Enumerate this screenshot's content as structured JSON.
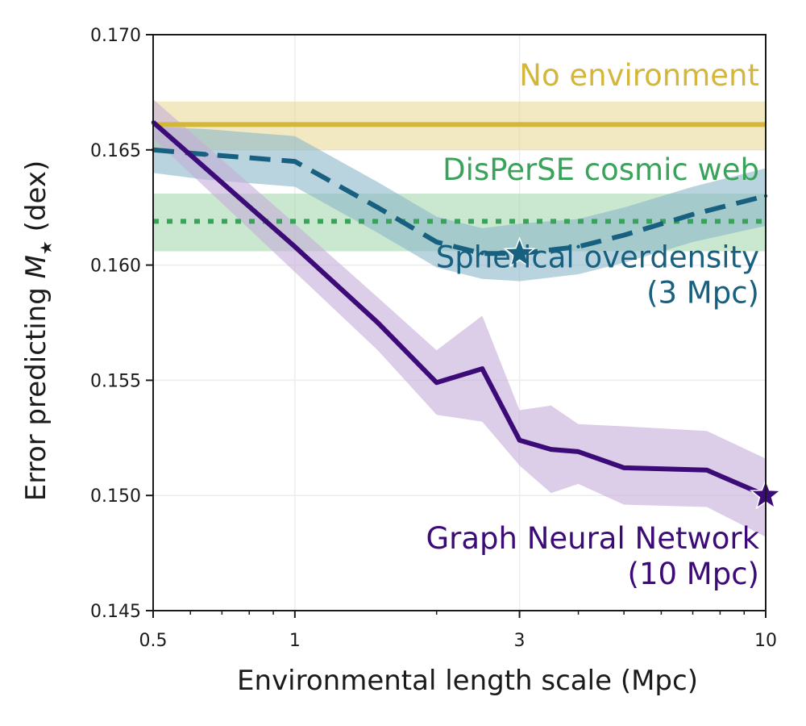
{
  "chart_data": {
    "type": "line",
    "xscale": "log",
    "xlim": [
      0.5,
      10
    ],
    "ylim": [
      0.145,
      0.17
    ],
    "grid": true,
    "xlabel": "Environmental length scale (Mpc)",
    "ylabel_prefix": "Error predicting ",
    "ylabel_var": "M",
    "ylabel_sub": "★",
    "ylabel_suffix": " (dex)",
    "xticks": [
      {
        "value": 0.5,
        "label": "0.5"
      },
      {
        "value": 1,
        "label": "1"
      },
      {
        "value": 3,
        "label": "3"
      },
      {
        "value": 10,
        "label": "10"
      }
    ],
    "yticks": [
      {
        "value": 0.145,
        "label": "0.145"
      },
      {
        "value": 0.15,
        "label": "0.150"
      },
      {
        "value": 0.155,
        "label": "0.155"
      },
      {
        "value": 0.16,
        "label": "0.160"
      },
      {
        "value": 0.165,
        "label": "0.165"
      },
      {
        "value": 0.17,
        "label": "0.170"
      }
    ],
    "series": [
      {
        "key": "none",
        "name": "No environment",
        "label_lines": [
          "No environment"
        ],
        "kind": "hline",
        "value": 0.1661,
        "band": [
          0.165,
          0.1671
        ],
        "color": "#d4b63a",
        "band_color": "#e8d68f",
        "dash": "solid",
        "label_value": [
          10,
          0.1678
        ]
      },
      {
        "key": "disperse",
        "name": "DisPerSE cosmic web",
        "label_lines": [
          "DisPerSE cosmic web"
        ],
        "kind": "hline",
        "value": 0.1619,
        "band": [
          0.1606,
          0.1631
        ],
        "color": "#3aa25a",
        "band_color": "#9fd3a9",
        "dash": "dotted",
        "label_value": [
          10,
          0.1637
        ]
      },
      {
        "key": "spherical",
        "name": "Spherical overdensity (3 Mpc)",
        "label_lines": [
          "Spherical overdensity",
          "(3 Mpc)"
        ],
        "kind": "line",
        "x": [
          0.5,
          0.65,
          1.0,
          1.5,
          2.0,
          2.5,
          3.0,
          4.0,
          5.0,
          7.0,
          10.0
        ],
        "y": [
          0.165,
          0.1648,
          0.1645,
          0.1625,
          0.161,
          0.1605,
          0.1605,
          0.1608,
          0.1613,
          0.1622,
          0.163
        ],
        "lower": [
          0.164,
          0.1637,
          0.1634,
          0.1614,
          0.1599,
          0.1594,
          0.1593,
          0.1596,
          0.1601,
          0.161,
          0.1617
        ],
        "upper": [
          0.166,
          0.1659,
          0.1656,
          0.1636,
          0.1621,
          0.1616,
          0.1618,
          0.162,
          0.1625,
          0.1634,
          0.1642
        ],
        "color": "#17607f",
        "band_color": "#8ab8c8",
        "dash": "dashed",
        "best": {
          "x": 3,
          "y": 0.1605
        },
        "label_value": [
          10,
          0.1599
        ]
      },
      {
        "key": "gnn",
        "name": "Graph Neural Network (10 Mpc)",
        "label_lines": [
          "Graph Neural Network",
          "(10 Mpc)"
        ],
        "kind": "line",
        "x": [
          0.5,
          1.0,
          1.5,
          2.0,
          2.5,
          3.0,
          3.5,
          4.0,
          5.0,
          7.5,
          10.0
        ],
        "y": [
          0.1662,
          0.1608,
          0.1575,
          0.1549,
          0.1555,
          0.1524,
          0.152,
          0.1519,
          0.1512,
          0.1511,
          0.15
        ],
        "lower": [
          0.1655,
          0.1597,
          0.1563,
          0.1535,
          0.1532,
          0.1513,
          0.1501,
          0.1505,
          0.1496,
          0.1495,
          0.1482
        ],
        "upper": [
          0.1672,
          0.1618,
          0.1586,
          0.1563,
          0.1578,
          0.1537,
          0.1539,
          0.1531,
          0.153,
          0.1528,
          0.1516
        ],
        "color": "#3c0b78",
        "band_color": "#c4aed8",
        "dash": "solid",
        "best": {
          "x": 10,
          "y": 0.15
        },
        "label_value": [
          10,
          0.1477
        ]
      }
    ]
  }
}
